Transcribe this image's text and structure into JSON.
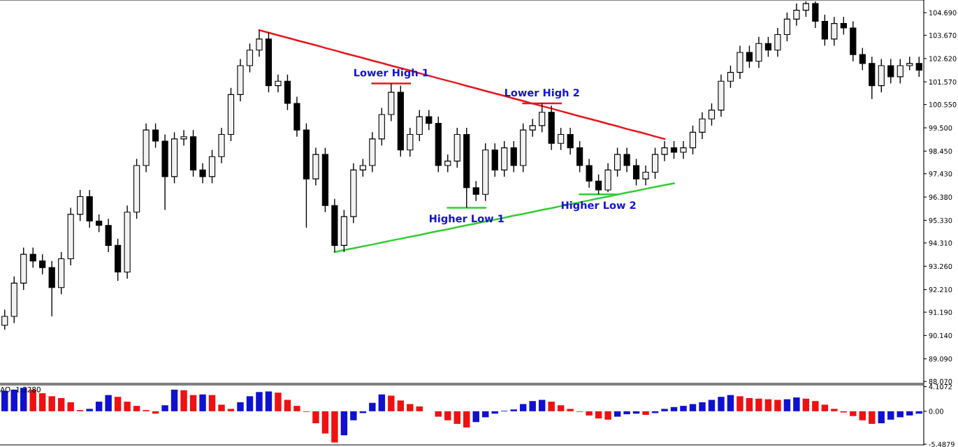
{
  "chart_data": [
    {
      "type": "candlestick",
      "tick_labels": "y",
      "grid": false,
      "legend": false,
      "categories": [
        null,
        null,
        null,
        null,
        null,
        null,
        null,
        null,
        null,
        null,
        null,
        null,
        null,
        null,
        null,
        null,
        null,
        null,
        null,
        null,
        null,
        null,
        null,
        null,
        null,
        null,
        null,
        null,
        null,
        null,
        null,
        null,
        null,
        null,
        null,
        null,
        null,
        null,
        null,
        null,
        null,
        null,
        null,
        null,
        null,
        null,
        null,
        null,
        null,
        null,
        null,
        null,
        null,
        null,
        null,
        null,
        null,
        null,
        null,
        null,
        null,
        null,
        null,
        null,
        null,
        null,
        null,
        null,
        null,
        null,
        null,
        null,
        null,
        null,
        null,
        null,
        null,
        null,
        null,
        null,
        null,
        null,
        null,
        null,
        null,
        null,
        null,
        null,
        null,
        null,
        null,
        null,
        null,
        null,
        null,
        null,
        null,
        null
      ],
      "ylim": [
        87.98,
        105.26
      ],
      "yticks": [
        {
          "value": 88.07,
          "label": "88.070"
        },
        {
          "value": 89.09,
          "label": "89.090"
        },
        {
          "value": 90.14,
          "label": "90.140"
        },
        {
          "value": 91.19,
          "label": "91.190"
        },
        {
          "value": 92.21,
          "label": "92.210"
        },
        {
          "value": 93.26,
          "label": "93.260"
        },
        {
          "value": 94.31,
          "label": "94.310"
        },
        {
          "value": 95.33,
          "label": "95.330"
        },
        {
          "value": 96.38,
          "label": "96.380"
        },
        {
          "value": 97.43,
          "label": "97.430"
        },
        {
          "value": 98.45,
          "label": "98.450"
        },
        {
          "value": 99.5,
          "label": "99.500"
        },
        {
          "value": 100.55,
          "label": "100.550"
        },
        {
          "value": 101.57,
          "label": "101.570"
        },
        {
          "value": 102.62,
          "label": "102.620"
        },
        {
          "value": 103.67,
          "label": "103.670"
        },
        {
          "value": 104.69,
          "label": "104.690"
        }
      ],
      "ohlc": [
        [
          90.6,
          91.3,
          90.4,
          91.0
        ],
        [
          91.0,
          92.8,
          90.7,
          92.5
        ],
        [
          92.5,
          94.1,
          92.2,
          93.8
        ],
        [
          93.8,
          94.1,
          93.2,
          93.5
        ],
        [
          93.5,
          93.8,
          92.9,
          93.2
        ],
        [
          93.2,
          93.5,
          91.0,
          92.3
        ],
        [
          92.3,
          93.9,
          92.0,
          93.6
        ],
        [
          93.6,
          95.9,
          93.3,
          95.6
        ],
        [
          95.6,
          96.7,
          95.3,
          96.4
        ],
        [
          96.4,
          96.7,
          95.0,
          95.3
        ],
        [
          95.3,
          95.6,
          94.8,
          95.1
        ],
        [
          95.1,
          95.4,
          93.9,
          94.2
        ],
        [
          94.2,
          94.5,
          92.6,
          93.0
        ],
        [
          93.0,
          96.0,
          92.7,
          95.7
        ],
        [
          95.7,
          98.1,
          95.4,
          97.8
        ],
        [
          97.8,
          99.7,
          97.5,
          99.4
        ],
        [
          99.4,
          99.7,
          98.6,
          98.9
        ],
        [
          98.9,
          99.2,
          95.8,
          97.3
        ],
        [
          97.3,
          99.3,
          97.0,
          99.0
        ],
        [
          99.0,
          99.4,
          98.7,
          99.1
        ],
        [
          99.1,
          99.4,
          97.3,
          97.6
        ],
        [
          97.6,
          97.9,
          97.0,
          97.3
        ],
        [
          97.3,
          98.5,
          97.0,
          98.2
        ],
        [
          98.2,
          99.5,
          97.9,
          99.2
        ],
        [
          99.2,
          101.3,
          98.9,
          101.0
        ],
        [
          101.0,
          102.6,
          100.7,
          102.3
        ],
        [
          102.3,
          103.3,
          102.0,
          103.0
        ],
        [
          103.0,
          103.9,
          102.7,
          103.5
        ],
        [
          103.5,
          103.8,
          101.1,
          101.4
        ],
        [
          101.4,
          101.9,
          101.1,
          101.6
        ],
        [
          101.6,
          101.9,
          100.3,
          100.6
        ],
        [
          100.6,
          100.9,
          99.1,
          99.4
        ],
        [
          99.4,
          99.7,
          95.0,
          97.2
        ],
        [
          97.2,
          98.6,
          96.9,
          98.3
        ],
        [
          98.3,
          98.6,
          95.7,
          96.0
        ],
        [
          96.0,
          96.3,
          93.9,
          94.2
        ],
        [
          94.2,
          95.8,
          93.9,
          95.5
        ],
        [
          95.5,
          97.9,
          95.2,
          97.6
        ],
        [
          97.6,
          98.1,
          97.3,
          97.8
        ],
        [
          97.8,
          99.3,
          97.5,
          99.0
        ],
        [
          99.0,
          100.4,
          98.7,
          100.1
        ],
        [
          100.1,
          101.5,
          99.8,
          101.1
        ],
        [
          101.1,
          101.4,
          98.2,
          98.5
        ],
        [
          98.5,
          99.5,
          98.2,
          99.2
        ],
        [
          99.2,
          100.3,
          98.9,
          100.0
        ],
        [
          100.0,
          100.3,
          99.4,
          99.7
        ],
        [
          99.7,
          100.0,
          97.5,
          97.8
        ],
        [
          97.8,
          98.3,
          97.5,
          98.0
        ],
        [
          98.0,
          99.5,
          97.7,
          99.2
        ],
        [
          99.2,
          99.5,
          95.9,
          96.8
        ],
        [
          96.8,
          97.1,
          96.2,
          96.5
        ],
        [
          96.5,
          98.8,
          96.2,
          98.5
        ],
        [
          98.5,
          98.8,
          97.3,
          97.6
        ],
        [
          97.6,
          98.9,
          97.3,
          98.6
        ],
        [
          98.6,
          98.9,
          97.5,
          97.8
        ],
        [
          97.8,
          99.7,
          97.5,
          99.4
        ],
        [
          99.4,
          99.9,
          99.1,
          99.6
        ],
        [
          99.6,
          100.6,
          99.3,
          100.2
        ],
        [
          100.2,
          100.5,
          98.5,
          98.8
        ],
        [
          98.8,
          99.5,
          98.5,
          99.2
        ],
        [
          99.2,
          99.5,
          98.3,
          98.6
        ],
        [
          98.6,
          98.9,
          97.5,
          97.8
        ],
        [
          97.8,
          98.1,
          96.8,
          97.1
        ],
        [
          97.1,
          97.4,
          96.5,
          96.7
        ],
        [
          96.7,
          97.9,
          96.6,
          97.6
        ],
        [
          97.6,
          98.6,
          97.3,
          98.3
        ],
        [
          98.3,
          98.6,
          97.5,
          97.8
        ],
        [
          97.8,
          98.1,
          96.9,
          97.2
        ],
        [
          97.2,
          97.8,
          96.9,
          97.5
        ],
        [
          97.5,
          98.6,
          97.2,
          98.3
        ],
        [
          98.3,
          98.9,
          98.0,
          98.6
        ],
        [
          98.6,
          98.9,
          98.1,
          98.4
        ],
        [
          98.4,
          98.9,
          98.1,
          98.6
        ],
        [
          98.6,
          99.6,
          98.3,
          99.3
        ],
        [
          99.3,
          100.2,
          99.0,
          99.9
        ],
        [
          99.9,
          100.6,
          99.6,
          100.3
        ],
        [
          100.3,
          101.9,
          100.0,
          101.6
        ],
        [
          101.6,
          102.3,
          101.3,
          102.0
        ],
        [
          102.0,
          103.2,
          101.7,
          102.9
        ],
        [
          102.9,
          103.2,
          102.2,
          102.5
        ],
        [
          102.5,
          103.6,
          102.2,
          103.3
        ],
        [
          103.3,
          103.6,
          102.7,
          103.0
        ],
        [
          103.0,
          104.0,
          102.7,
          103.7
        ],
        [
          103.7,
          104.7,
          103.4,
          104.4
        ],
        [
          104.4,
          105.1,
          104.1,
          104.8
        ],
        [
          104.8,
          105.2,
          104.5,
          105.1
        ],
        [
          105.1,
          105.2,
          104.0,
          104.3
        ],
        [
          104.3,
          104.6,
          103.2,
          103.5
        ],
        [
          103.5,
          104.5,
          103.2,
          104.2
        ],
        [
          104.2,
          104.5,
          103.7,
          104.0
        ],
        [
          104.0,
          104.3,
          102.5,
          102.8
        ],
        [
          102.8,
          103.1,
          102.1,
          102.4
        ],
        [
          102.4,
          102.7,
          100.8,
          101.4
        ],
        [
          101.4,
          102.6,
          101.1,
          102.3
        ],
        [
          102.3,
          102.6,
          101.5,
          101.8
        ],
        [
          101.8,
          102.6,
          101.5,
          102.3
        ],
        [
          102.3,
          102.7,
          102.1,
          102.4
        ],
        [
          102.4,
          102.7,
          101.8,
          102.1
        ]
      ],
      "series": [
        {
          "type": "line",
          "color": "#e8141c",
          "values": [
            null,
            null,
            null,
            null,
            null,
            null,
            null,
            null,
            null,
            null,
            null,
            null,
            null,
            null,
            null,
            null,
            null,
            null,
            null,
            null,
            null,
            null,
            null,
            null,
            null,
            null,
            null,
            103.9,
            103.79,
            103.67,
            103.56,
            103.44,
            103.33,
            103.22,
            103.1,
            102.99,
            102.87,
            102.76,
            102.65,
            102.53,
            102.42,
            102.3,
            102.19,
            102.08,
            101.96,
            101.85,
            101.73,
            101.62,
            101.51,
            101.39,
            101.28,
            101.16,
            101.05,
            100.94,
            100.82,
            100.71,
            100.59,
            100.48,
            100.37,
            100.25,
            100.14,
            100.02,
            99.91,
            99.8,
            99.68,
            99.57,
            99.45,
            99.34,
            99.23,
            99.11,
            99.0,
            null,
            null,
            null,
            null,
            null,
            null,
            null,
            null,
            null,
            null,
            null,
            null,
            null,
            null,
            null,
            null,
            null,
            null,
            null,
            null,
            null,
            null,
            null,
            null,
            null,
            null,
            null
          ]
        },
        {
          "type": "line",
          "color": "#33cc33",
          "values": [
            null,
            null,
            null,
            null,
            null,
            null,
            null,
            null,
            null,
            null,
            null,
            null,
            null,
            null,
            null,
            null,
            null,
            null,
            null,
            null,
            null,
            null,
            null,
            null,
            null,
            null,
            null,
            null,
            null,
            null,
            null,
            null,
            null,
            null,
            null,
            93.9,
            93.99,
            94.07,
            94.16,
            94.24,
            94.33,
            94.42,
            94.5,
            94.59,
            94.67,
            94.76,
            94.85,
            94.93,
            95.02,
            95.11,
            95.19,
            95.28,
            95.36,
            95.45,
            95.54,
            95.62,
            95.71,
            95.8,
            95.88,
            95.97,
            96.06,
            96.14,
            96.23,
            96.32,
            96.4,
            96.49,
            96.58,
            96.66,
            96.75,
            96.83,
            96.92,
            97.0,
            null,
            null,
            null,
            null,
            null,
            null,
            null,
            null,
            null,
            null,
            null,
            null,
            null,
            null,
            null,
            null,
            null,
            null,
            null,
            null,
            null,
            null,
            null,
            null,
            null,
            null
          ]
        },
        {
          "type": "line",
          "color": "#e8141c",
          "values": [
            null,
            null,
            null,
            null,
            null,
            null,
            null,
            null,
            null,
            null,
            null,
            null,
            null,
            null,
            null,
            null,
            null,
            null,
            null,
            null,
            null,
            null,
            null,
            null,
            null,
            null,
            null,
            null,
            null,
            null,
            null,
            null,
            null,
            null,
            null,
            null,
            null,
            null,
            null,
            101.5,
            101.5,
            101.5,
            101.5,
            101.5,
            null,
            null,
            null,
            null,
            null,
            null,
            null,
            null,
            null,
            null,
            null,
            null,
            null,
            null,
            null,
            null,
            null,
            null,
            null,
            null,
            null,
            null,
            null,
            null,
            null,
            null,
            null,
            null,
            null,
            null,
            null,
            null,
            null,
            null,
            null,
            null,
            null,
            null,
            null,
            null,
            null,
            null,
            null,
            null,
            null,
            null,
            null,
            null,
            null,
            null,
            null,
            null,
            null,
            null
          ]
        },
        {
          "type": "line",
          "color": "#e8141c",
          "values": [
            null,
            null,
            null,
            null,
            null,
            null,
            null,
            null,
            null,
            null,
            null,
            null,
            null,
            null,
            null,
            null,
            null,
            null,
            null,
            null,
            null,
            null,
            null,
            null,
            null,
            null,
            null,
            null,
            null,
            null,
            null,
            null,
            null,
            null,
            null,
            null,
            null,
            null,
            null,
            null,
            null,
            null,
            null,
            null,
            null,
            null,
            null,
            null,
            null,
            null,
            null,
            null,
            null,
            null,
            null,
            100.6,
            100.6,
            100.6,
            100.6,
            100.6,
            null,
            null,
            null,
            null,
            null,
            null,
            null,
            null,
            null,
            null,
            null,
            null,
            null,
            null,
            null,
            null,
            null,
            null,
            null,
            null,
            null,
            null,
            null,
            null,
            null,
            null,
            null,
            null,
            null,
            null,
            null,
            null,
            null,
            null,
            null,
            null,
            null,
            null
          ]
        },
        {
          "type": "line",
          "color": "#33cc33",
          "values": [
            null,
            null,
            null,
            null,
            null,
            null,
            null,
            null,
            null,
            null,
            null,
            null,
            null,
            null,
            null,
            null,
            null,
            null,
            null,
            null,
            null,
            null,
            null,
            null,
            null,
            null,
            null,
            null,
            null,
            null,
            null,
            null,
            null,
            null,
            null,
            null,
            null,
            null,
            null,
            null,
            null,
            null,
            null,
            null,
            null,
            null,
            null,
            95.9,
            95.9,
            95.9,
            95.9,
            95.9,
            null,
            null,
            null,
            null,
            null,
            null,
            null,
            null,
            null,
            null,
            null,
            null,
            null,
            null,
            null,
            null,
            null,
            null,
            null,
            null,
            null,
            null,
            null,
            null,
            null,
            null,
            null,
            null,
            null,
            null,
            null,
            null,
            null,
            null,
            null,
            null,
            null,
            null,
            null,
            null,
            null,
            null,
            null,
            null,
            null,
            null
          ]
        },
        {
          "type": "line",
          "color": "#33cc33",
          "values": [
            null,
            null,
            null,
            null,
            null,
            null,
            null,
            null,
            null,
            null,
            null,
            null,
            null,
            null,
            null,
            null,
            null,
            null,
            null,
            null,
            null,
            null,
            null,
            null,
            null,
            null,
            null,
            null,
            null,
            null,
            null,
            null,
            null,
            null,
            null,
            null,
            null,
            null,
            null,
            null,
            null,
            null,
            null,
            null,
            null,
            null,
            null,
            null,
            null,
            null,
            null,
            null,
            null,
            null,
            null,
            null,
            null,
            null,
            null,
            null,
            null,
            96.5,
            96.5,
            96.5,
            96.5,
            96.5,
            null,
            null,
            null,
            null,
            null,
            null,
            null,
            null,
            null,
            null,
            null,
            null,
            null,
            null,
            null,
            null,
            null,
            null,
            null,
            null,
            null,
            null,
            null,
            null,
            null,
            null,
            null,
            null,
            null,
            null,
            null,
            null
          ]
        }
      ],
      "annotations": [
        "Lower High 1",
        "Lower High 2",
        "Higher Low 1",
        "Higher Low 2"
      ]
    },
    {
      "type": "bar",
      "title": "AO -1.3280",
      "tick_labels": "y",
      "grid": false,
      "legend": false,
      "categories": [
        null,
        null,
        null,
        null,
        null,
        null,
        null,
        null,
        null,
        null,
        null,
        null,
        null,
        null,
        null,
        null,
        null,
        null,
        null,
        null,
        null,
        null,
        null,
        null,
        null,
        null,
        null,
        null,
        null,
        null,
        null,
        null,
        null,
        null,
        null,
        null,
        null,
        null,
        null,
        null,
        null,
        null,
        null,
        null,
        null,
        null,
        null,
        null,
        null,
        null,
        null,
        null,
        null,
        null,
        null,
        null,
        null,
        null,
        null,
        null,
        null,
        null,
        null,
        null,
        null,
        null,
        null,
        null,
        null,
        null,
        null,
        null,
        null,
        null,
        null,
        null,
        null,
        null,
        null,
        null,
        null,
        null,
        null,
        null,
        null,
        null,
        null,
        null,
        null,
        null,
        null,
        null,
        null,
        null,
        null,
        null,
        null,
        null
      ],
      "ylim": [
        -5.6,
        4.4
      ],
      "yticks": [
        -5.4879,
        {
          "value": 0,
          "label": "0.00"
        },
        4.1072
      ],
      "values": [
        3.4,
        3.6,
        3.9,
        3.6,
        3.0,
        2.5,
        2.2,
        1.5,
        0.2,
        0.4,
        1.6,
        2.7,
        2.4,
        1.6,
        0.9,
        0.2,
        -0.4,
        1.0,
        3.6,
        3.5,
        2.7,
        2.8,
        2.7,
        1.1,
        0.4,
        1.5,
        2.5,
        3.2,
        3.3,
        3.1,
        1.9,
        0.9,
        -0.1,
        -2.0,
        -3.7,
        -5.2,
        -4.0,
        -1.5,
        -0.3,
        1.4,
        2.8,
        2.6,
        1.8,
        1.2,
        0.8,
        0.0,
        -0.9,
        -1.5,
        -2.1,
        -2.7,
        -1.8,
        -1.0,
        -0.4,
        0.1,
        0.3,
        1.2,
        1.7,
        1.9,
        1.6,
        1.0,
        0.4,
        -0.1,
        -0.7,
        -1.2,
        -1.4,
        -0.9,
        -0.5,
        -0.4,
        -0.6,
        -0.3,
        0.4,
        0.7,
        0.9,
        1.2,
        1.5,
        1.9,
        2.4,
        2.7,
        2.5,
        2.2,
        2.1,
        2.0,
        1.9,
        2.0,
        2.3,
        2.1,
        1.7,
        1.1,
        0.4,
        -0.2,
        -0.8,
        -1.5,
        -2.1,
        -2.0,
        -1.4,
        -1.0,
        -0.7,
        -0.4
      ],
      "colors": [
        "#1010d0",
        "#1010d0",
        "#1010d0",
        "#ee1111",
        "#ee1111",
        "#ee1111",
        "#ee1111",
        "#ee1111",
        "#ee1111",
        "#1010d0",
        "#1010d0",
        "#1010d0",
        "#ee1111",
        "#ee1111",
        "#ee1111",
        "#ee1111",
        "#ee1111",
        "#1010d0",
        "#1010d0",
        "#ee1111",
        "#ee1111",
        "#1010d0",
        "#ee1111",
        "#ee1111",
        "#ee1111",
        "#1010d0",
        "#1010d0",
        "#1010d0",
        "#1010d0",
        "#ee1111",
        "#ee1111",
        "#ee1111",
        "#ee1111",
        "#ee1111",
        "#ee1111",
        "#ee1111",
        "#1010d0",
        "#1010d0",
        "#1010d0",
        "#1010d0",
        "#1010d0",
        "#ee1111",
        "#ee1111",
        "#ee1111",
        "#ee1111",
        "#ee1111",
        "#ee1111",
        "#ee1111",
        "#ee1111",
        "#ee1111",
        "#1010d0",
        "#1010d0",
        "#1010d0",
        "#1010d0",
        "#1010d0",
        "#1010d0",
        "#1010d0",
        "#1010d0",
        "#ee1111",
        "#ee1111",
        "#ee1111",
        "#ee1111",
        "#ee1111",
        "#ee1111",
        "#ee1111",
        "#1010d0",
        "#1010d0",
        "#1010d0",
        "#ee1111",
        "#1010d0",
        "#1010d0",
        "#1010d0",
        "#1010d0",
        "#1010d0",
        "#1010d0",
        "#1010d0",
        "#1010d0",
        "#1010d0",
        "#ee1111",
        "#ee1111",
        "#ee1111",
        "#ee1111",
        "#ee1111",
        "#1010d0",
        "#1010d0",
        "#ee1111",
        "#ee1111",
        "#ee1111",
        "#ee1111",
        "#ee1111",
        "#ee1111",
        "#ee1111",
        "#ee1111",
        "#1010d0",
        "#1010d0",
        "#1010d0",
        "#1010d0",
        "#1010d0"
      ]
    }
  ]
}
